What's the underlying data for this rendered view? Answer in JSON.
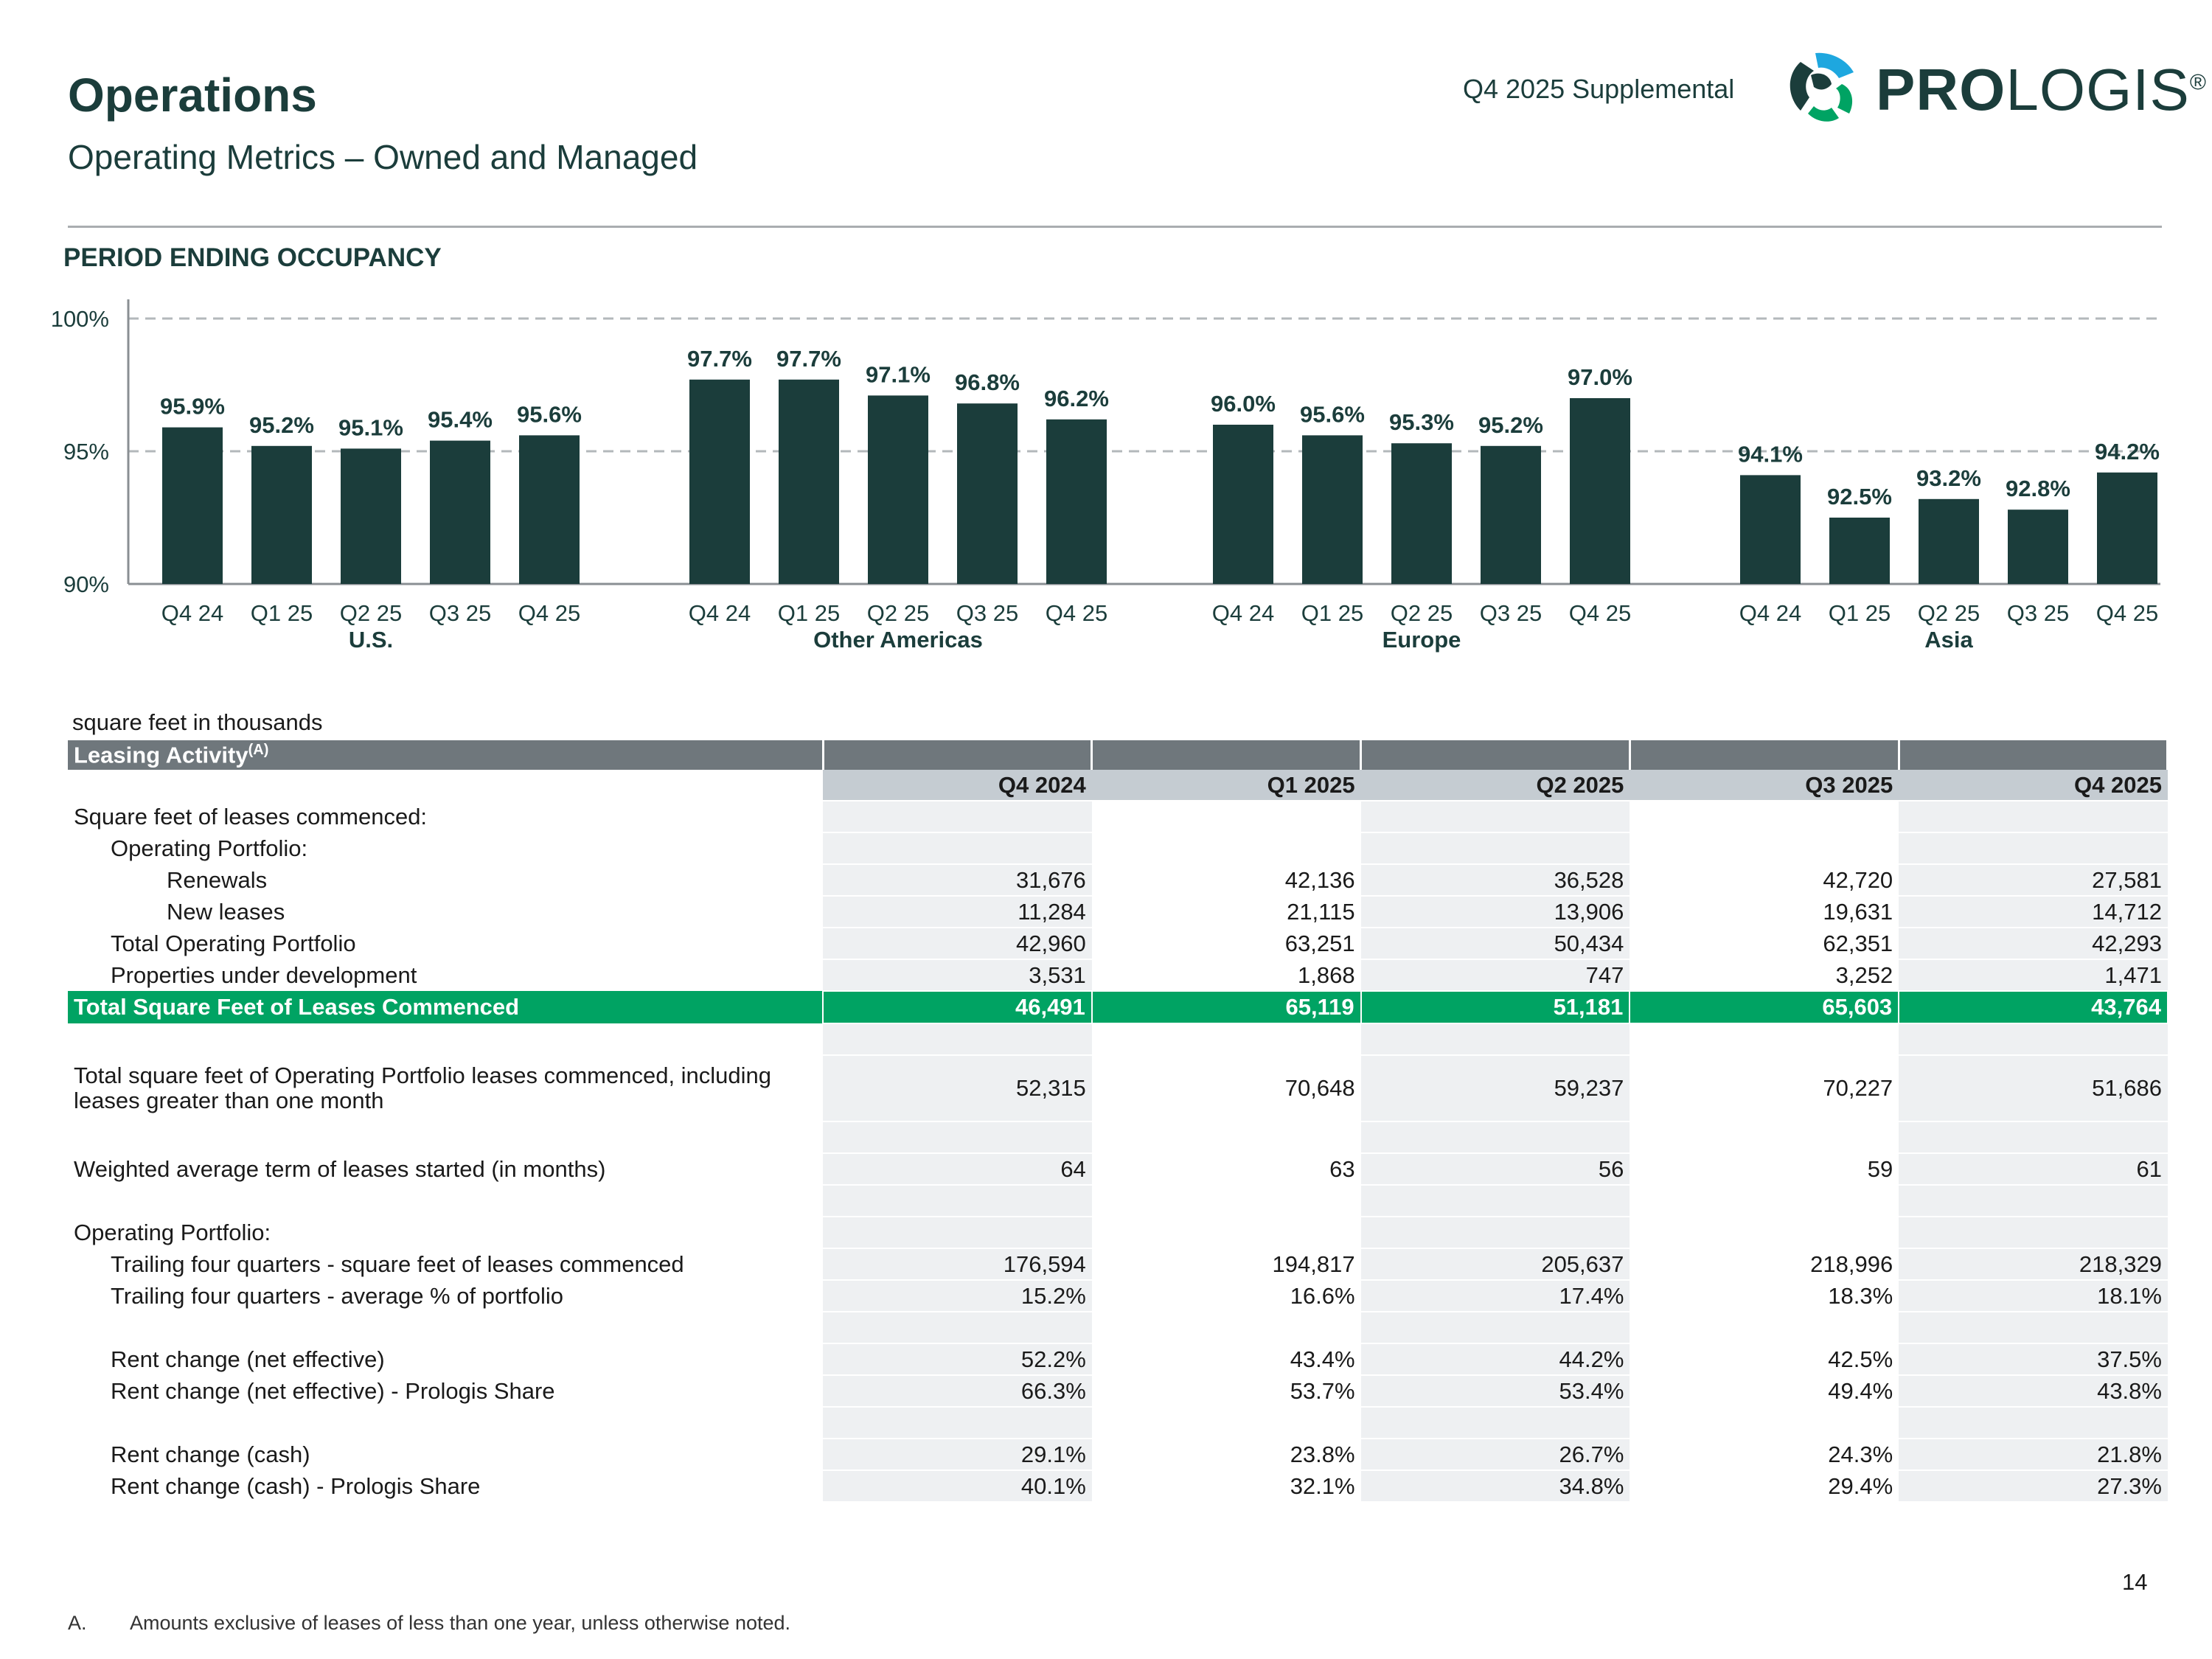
{
  "header": {
    "title": "Operations",
    "subtitle": "Operating Metrics – Owned and Managed",
    "supplemental": "Q4 2025 Supplemental",
    "logo": {
      "text_bold": "PRO",
      "text_light": "LOGIS",
      "registered": "®",
      "icon": "globe-logo-icon"
    }
  },
  "colors": {
    "bar": "#1b3d3b",
    "accent_green": "#00a363",
    "header_gray": "#6f777c",
    "cell_bg": "#eef0f2"
  },
  "occupancy_heading": "PERIOD ENDING OCCUPANCY",
  "chart_data": {
    "type": "bar",
    "title": "",
    "ylim": [
      90,
      100
    ],
    "y_ticks": [
      "90%",
      "95%",
      "100%"
    ],
    "reference_lines": [
      95,
      100
    ],
    "groups": [
      {
        "name": "U.S.",
        "categories": [
          "Q4 24",
          "Q1 25",
          "Q2 25",
          "Q3 25",
          "Q4 25"
        ],
        "values": [
          95.9,
          95.2,
          95.1,
          95.4,
          95.6
        ],
        "labels": [
          "95.9%",
          "95.2%",
          "95.1%",
          "95.4%",
          "95.6%"
        ]
      },
      {
        "name": "Other Americas",
        "categories": [
          "Q4 24",
          "Q1 25",
          "Q2 25",
          "Q3 25",
          "Q4 25"
        ],
        "values": [
          97.7,
          97.7,
          97.1,
          96.8,
          96.2
        ],
        "labels": [
          "97.7%",
          "97.7%",
          "97.1%",
          "96.8%",
          "96.2%"
        ]
      },
      {
        "name": "Europe",
        "categories": [
          "Q4 24",
          "Q1 25",
          "Q2 25",
          "Q3 25",
          "Q4 25"
        ],
        "values": [
          96.0,
          95.6,
          95.3,
          95.2,
          97.0
        ],
        "labels": [
          "96.0%",
          "95.6%",
          "95.3%",
          "95.2%",
          "97.0%"
        ]
      },
      {
        "name": "Asia",
        "categories": [
          "Q4 24",
          "Q1 25",
          "Q2 25",
          "Q3 25",
          "Q4 25"
        ],
        "values": [
          94.1,
          92.5,
          93.2,
          92.8,
          94.2
        ],
        "labels": [
          "94.1%",
          "92.5%",
          "93.2%",
          "92.8%",
          "94.2%"
        ]
      }
    ]
  },
  "table": {
    "unit_note": "square feet in thousands",
    "title": "Leasing Activity",
    "title_sup": "(A)",
    "columns": [
      "Q4 2024",
      "Q1 2025",
      "Q2 2025",
      "Q3 2025",
      "Q4 2025"
    ],
    "rows": {
      "sf_commenced": "Square feet of leases commenced:",
      "op_portfolio": "Operating Portfolio:",
      "renewals": {
        "label": "Renewals",
        "values": [
          "31,676",
          "42,136",
          "36,528",
          "42,720",
          "27,581"
        ]
      },
      "new_leases": {
        "label": "New leases",
        "values": [
          "11,284",
          "21,115",
          "13,906",
          "19,631",
          "14,712"
        ]
      },
      "total_op": {
        "label": "Total Operating Portfolio",
        "values": [
          "42,960",
          "63,251",
          "50,434",
          "62,351",
          "42,293"
        ]
      },
      "under_dev": {
        "label": "Properties under development",
        "values": [
          "3,531",
          "1,868",
          "747",
          "3,252",
          "1,471"
        ]
      },
      "total_sf": {
        "label": "Total Square Feet of Leases Commenced",
        "values": [
          "46,491",
          "65,119",
          "51,181",
          "65,603",
          "43,764"
        ]
      },
      "total_incl": {
        "label": "Total square feet of Operating Portfolio leases commenced, including leases greater than one month",
        "values": [
          "52,315",
          "70,648",
          "59,237",
          "70,227",
          "51,686"
        ]
      },
      "wavg_term": {
        "label": "Weighted average term of leases started (in months)",
        "values": [
          "64",
          "63",
          "56",
          "59",
          "61"
        ]
      },
      "op_portfolio2": "Operating Portfolio:",
      "t4q_sf": {
        "label": "Trailing four quarters - square feet of leases commenced",
        "values": [
          "176,594",
          "194,817",
          "205,637",
          "218,996",
          "218,329"
        ]
      },
      "t4q_pct": {
        "label": "Trailing four quarters - average % of portfolio",
        "values": [
          "15.2%",
          "16.6%",
          "17.4%",
          "18.3%",
          "18.1%"
        ]
      },
      "rent_net": {
        "label": "Rent change (net effective)",
        "values": [
          "52.2%",
          "43.4%",
          "44.2%",
          "42.5%",
          "37.5%"
        ]
      },
      "rent_net_share": {
        "label": "Rent change (net effective) - Prologis Share",
        "values": [
          "66.3%",
          "53.7%",
          "53.4%",
          "49.4%",
          "43.8%"
        ]
      },
      "rent_cash": {
        "label": "Rent change (cash)",
        "values": [
          "29.1%",
          "23.8%",
          "26.7%",
          "24.3%",
          "21.8%"
        ]
      },
      "rent_cash_share": {
        "label": "Rent change (cash) - Prologis Share",
        "values": [
          "40.1%",
          "32.1%",
          "34.8%",
          "29.4%",
          "27.3%"
        ]
      }
    }
  },
  "page_number": "14",
  "footnote": {
    "letter": "A.",
    "text": "Amounts exclusive of leases of less than one year, unless otherwise noted."
  }
}
